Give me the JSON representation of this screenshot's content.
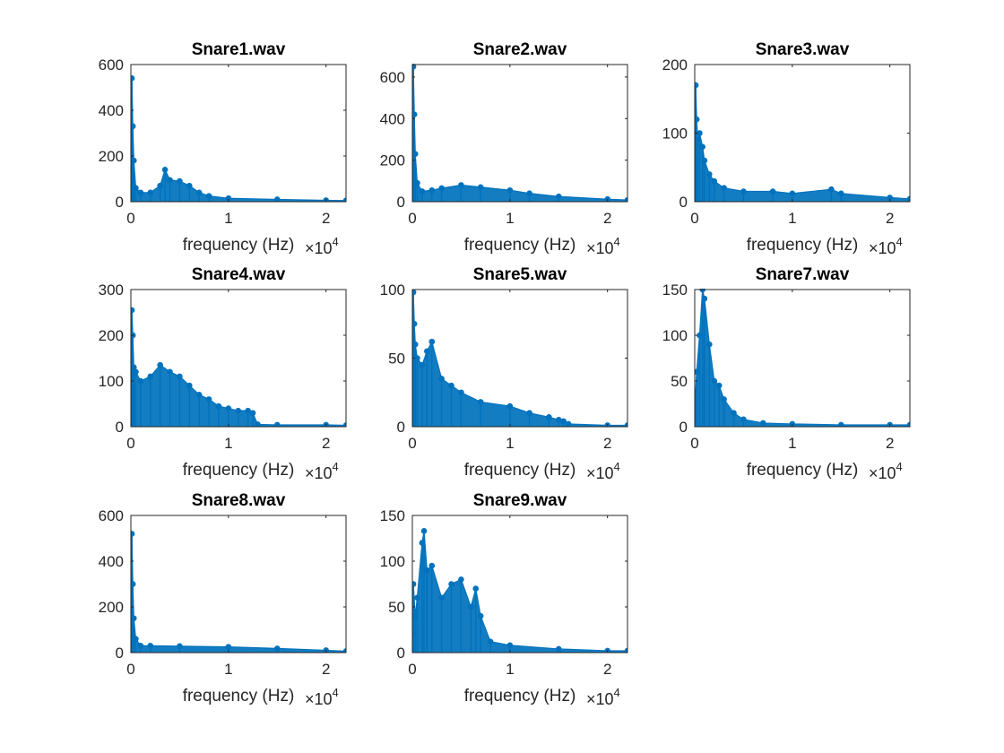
{
  "colors": {
    "series": "#0072BD",
    "axes": "#262626",
    "background": "#ffffff"
  },
  "chart_data": [
    {
      "type": "line",
      "title": "Snare1.wav",
      "xlabel": "frequency (Hz)",
      "x_multiplier": "×10",
      "x_multiplier_exp": "4",
      "xlim": [
        0,
        2.205
      ],
      "ylim": [
        0,
        600
      ],
      "xticks": [
        0,
        1,
        2
      ],
      "yticks": [
        0,
        200,
        400,
        600
      ],
      "series": [
        {
          "x": [
            0,
            0.01,
            0.02,
            0.03,
            0.05,
            0.1,
            0.2,
            0.3,
            0.35,
            0.4,
            0.5,
            0.6,
            0.7,
            0.8,
            1.0,
            1.5,
            2.0,
            2.205
          ],
          "y": [
            150,
            540,
            330,
            180,
            60,
            40,
            40,
            70,
            140,
            95,
            90,
            70,
            40,
            25,
            15,
            10,
            6,
            5
          ]
        }
      ]
    },
    {
      "type": "line",
      "title": "Snare2.wav",
      "xlabel": "frequency (Hz)",
      "x_multiplier": "×10",
      "x_multiplier_exp": "4",
      "xlim": [
        0,
        2.205
      ],
      "ylim": [
        0,
        660
      ],
      "xticks": [
        0,
        1,
        2
      ],
      "yticks": [
        0,
        200,
        400,
        600
      ],
      "series": [
        {
          "x": [
            0,
            0.01,
            0.02,
            0.03,
            0.05,
            0.1,
            0.2,
            0.3,
            0.5,
            0.7,
            1.0,
            1.2,
            1.5,
            2.0,
            2.205
          ],
          "y": [
            180,
            650,
            420,
            230,
            90,
            50,
            55,
            65,
            80,
            70,
            55,
            40,
            25,
            12,
            8
          ]
        }
      ]
    },
    {
      "type": "line",
      "title": "Snare3.wav",
      "xlabel": "frequency (Hz)",
      "x_multiplier": "×10",
      "x_multiplier_exp": "4",
      "xlim": [
        0,
        2.205
      ],
      "ylim": [
        0,
        200
      ],
      "xticks": [
        0,
        1,
        2
      ],
      "yticks": [
        0,
        100,
        200
      ],
      "series": [
        {
          "x": [
            0,
            0.01,
            0.02,
            0.03,
            0.05,
            0.08,
            0.1,
            0.15,
            0.2,
            0.3,
            0.5,
            0.8,
            1.0,
            1.4,
            1.5,
            2.0,
            2.205
          ],
          "y": [
            60,
            170,
            120,
            90,
            100,
            80,
            60,
            40,
            30,
            20,
            15,
            15,
            12,
            18,
            12,
            6,
            4
          ]
        }
      ]
    },
    {
      "type": "line",
      "title": "Snare4.wav",
      "xlabel": "frequency (Hz)",
      "x_multiplier": "×10",
      "x_multiplier_exp": "4",
      "xlim": [
        0,
        2.205
      ],
      "ylim": [
        0,
        300
      ],
      "xticks": [
        0,
        1,
        2
      ],
      "yticks": [
        0,
        100,
        200,
        300
      ],
      "series": [
        {
          "x": [
            0,
            0.01,
            0.02,
            0.03,
            0.05,
            0.1,
            0.2,
            0.3,
            0.4,
            0.5,
            0.6,
            0.7,
            0.8,
            0.9,
            1.0,
            1.1,
            1.2,
            1.25,
            1.3,
            1.5,
            2.0,
            2.205
          ],
          "y": [
            100,
            255,
            200,
            130,
            120,
            100,
            110,
            135,
            120,
            110,
            90,
            70,
            60,
            45,
            40,
            35,
            35,
            30,
            5,
            4,
            4,
            3
          ]
        }
      ]
    },
    {
      "type": "line",
      "title": "Snare5.wav",
      "xlabel": "frequency (Hz)",
      "x_multiplier": "×10",
      "x_multiplier_exp": "4",
      "xlim": [
        0,
        2.205
      ],
      "ylim": [
        0,
        100
      ],
      "xticks": [
        0,
        1,
        2
      ],
      "yticks": [
        0,
        50,
        100
      ],
      "series": [
        {
          "x": [
            0,
            0.01,
            0.02,
            0.03,
            0.05,
            0.1,
            0.15,
            0.2,
            0.3,
            0.4,
            0.5,
            0.7,
            1.0,
            1.2,
            1.4,
            1.5,
            1.55,
            1.6,
            2.0,
            2.205
          ],
          "y": [
            40,
            98,
            75,
            60,
            50,
            45,
            55,
            62,
            35,
            30,
            25,
            18,
            15,
            10,
            7,
            5,
            4,
            2,
            1,
            1
          ]
        }
      ]
    },
    {
      "type": "line",
      "title": "Snare7.wav",
      "xlabel": "frequency (Hz)",
      "x_multiplier": "×10",
      "x_multiplier_exp": "4",
      "xlim": [
        0,
        2.205
      ],
      "ylim": [
        0,
        150
      ],
      "xticks": [
        0,
        1,
        2
      ],
      "yticks": [
        0,
        50,
        100,
        150
      ],
      "series": [
        {
          "x": [
            0,
            0.02,
            0.05,
            0.08,
            0.1,
            0.15,
            0.2,
            0.25,
            0.3,
            0.4,
            0.5,
            0.7,
            1.0,
            1.5,
            2.0,
            2.205
          ],
          "y": [
            20,
            60,
            100,
            150,
            140,
            90,
            50,
            45,
            30,
            15,
            8,
            4,
            3,
            2,
            2,
            2
          ]
        }
      ]
    },
    {
      "type": "line",
      "title": "Snare8.wav",
      "xlabel": "frequency (Hz)",
      "x_multiplier": "×10",
      "x_multiplier_exp": "4",
      "xlim": [
        0,
        2.205
      ],
      "ylim": [
        0,
        600
      ],
      "xticks": [
        0,
        1,
        2
      ],
      "yticks": [
        0,
        200,
        400,
        600
      ],
      "series": [
        {
          "x": [
            0,
            0.01,
            0.02,
            0.03,
            0.05,
            0.1,
            0.2,
            0.5,
            1.0,
            1.5,
            2.0,
            2.205
          ],
          "y": [
            200,
            520,
            300,
            150,
            60,
            30,
            30,
            28,
            25,
            18,
            10,
            6
          ]
        }
      ]
    },
    {
      "type": "line",
      "title": "Snare9.wav",
      "xlabel": "frequency (Hz)",
      "x_multiplier": "×10",
      "x_multiplier_exp": "4",
      "xlim": [
        0,
        2.205
      ],
      "ylim": [
        0,
        150
      ],
      "xticks": [
        0,
        1,
        2
      ],
      "yticks": [
        0,
        50,
        100,
        150
      ],
      "series": [
        {
          "x": [
            0,
            0.01,
            0.03,
            0.05,
            0.1,
            0.12,
            0.15,
            0.2,
            0.3,
            0.4,
            0.5,
            0.6,
            0.65,
            0.7,
            0.8,
            1.0,
            1.5,
            2.0,
            2.205
          ],
          "y": [
            20,
            75,
            40,
            60,
            120,
            133,
            90,
            95,
            60,
            75,
            80,
            50,
            70,
            40,
            12,
            8,
            4,
            2,
            2
          ]
        }
      ]
    }
  ]
}
